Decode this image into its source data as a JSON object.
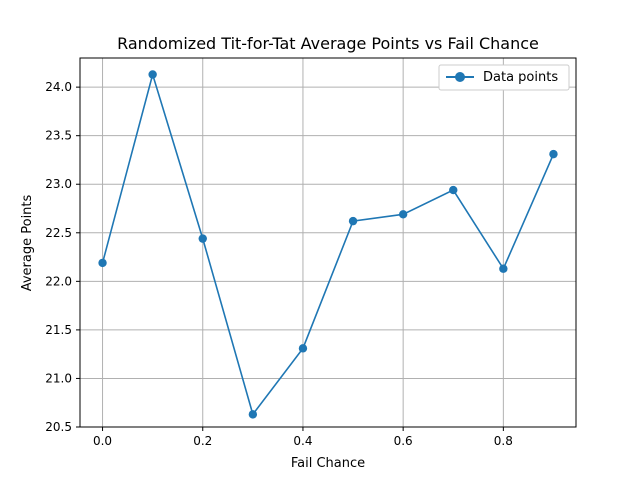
{
  "chart_data": {
    "type": "line",
    "title": "Randomized Tit-for-Tat Average Points vs Fail Chance",
    "xlabel": "Fail Chance",
    "ylabel": "Average Points",
    "xlim": [
      -0.045,
      0.945
    ],
    "ylim": [
      20.5,
      24.3
    ],
    "grid": true,
    "legend_position": "top-right",
    "x_ticks": [
      "0.0",
      "0.2",
      "0.4",
      "0.6",
      "0.8"
    ],
    "x_tick_values": [
      0.0,
      0.2,
      0.4,
      0.6,
      0.8
    ],
    "y_ticks": [
      "20.5",
      "21.0",
      "21.5",
      "22.0",
      "22.5",
      "23.0",
      "23.5",
      "24.0"
    ],
    "y_tick_values": [
      20.5,
      21.0,
      21.5,
      22.0,
      22.5,
      23.0,
      23.5,
      24.0
    ],
    "series": [
      {
        "name": "Data points",
        "color": "#1f77b4",
        "marker": "circle",
        "x": [
          0.0,
          0.1,
          0.2,
          0.3,
          0.4,
          0.5,
          0.6,
          0.7,
          0.8,
          0.9
        ],
        "y": [
          22.19,
          24.13,
          22.44,
          20.63,
          21.31,
          22.62,
          22.69,
          22.94,
          22.13,
          23.31
        ]
      }
    ]
  }
}
